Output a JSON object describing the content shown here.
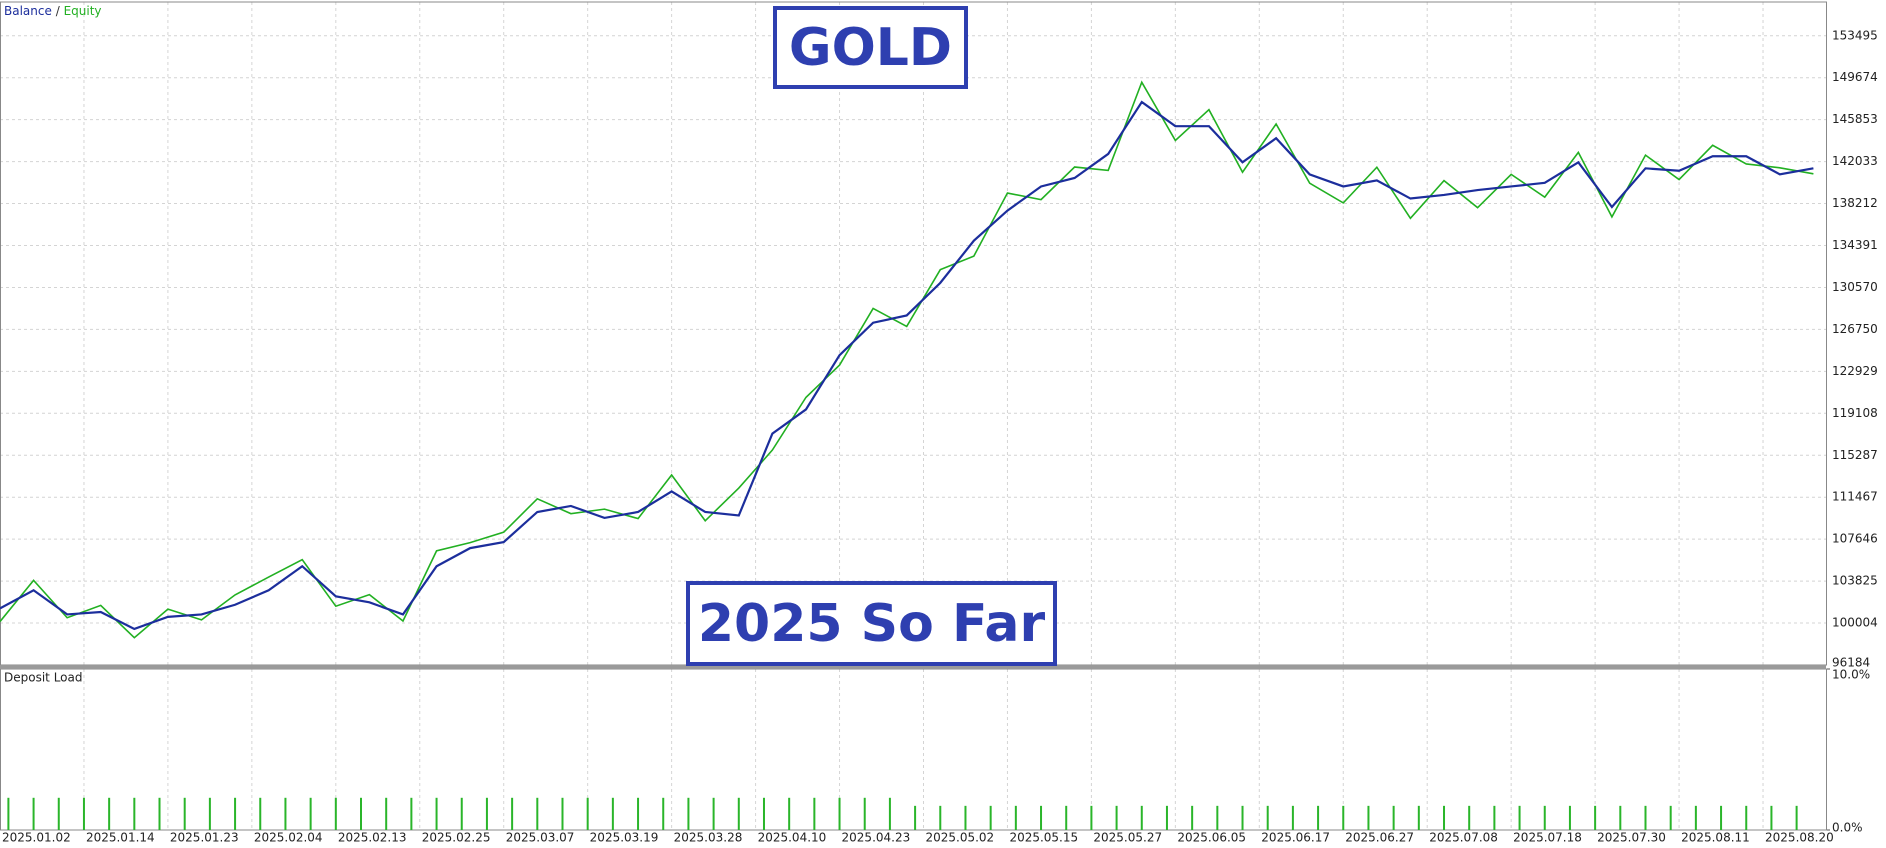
{
  "chart_data": [
    {
      "type": "line",
      "legend_separator": "/",
      "annotations": [
        "GOLD",
        "2025 So Far"
      ],
      "x": [
        0,
        4,
        8,
        12,
        16,
        20,
        24,
        28,
        32,
        36,
        40,
        44,
        48,
        52,
        56,
        60,
        64,
        68,
        72,
        76,
        80,
        84,
        88,
        92,
        96,
        100,
        104,
        108,
        112,
        116,
        120,
        124,
        128,
        132,
        136,
        140,
        144,
        148,
        152,
        156,
        160,
        164,
        168,
        172,
        176,
        180,
        184,
        188,
        192,
        196,
        200,
        204,
        208,
        212,
        216
      ],
      "series": [
        {
          "name": "Equity",
          "color": "#22b022",
          "values": [
            100140,
            103890,
            100490,
            101610,
            98670,
            101270,
            100290,
            102570,
            104190,
            105780,
            101540,
            102590,
            100190,
            106580,
            107330,
            108280,
            111320,
            109970,
            110380,
            109520,
            113490,
            109320,
            112300,
            115760,
            120560,
            123500,
            128660,
            127020,
            132190,
            133430,
            139170,
            138570,
            141540,
            141230,
            149260,
            143960,
            146760,
            141070,
            145460,
            140070,
            138270,
            141520,
            136870,
            140300,
            137840,
            140870,
            138800,
            142870,
            137000,
            142620,
            140400,
            143520,
            141820,
            141470,
            140920
          ]
        },
        {
          "name": "Balance",
          "color": "#1c2e9c",
          "values": [
            101340,
            102990,
            100790,
            101010,
            99470,
            100570,
            100790,
            101670,
            102990,
            105180,
            102440,
            101890,
            100790,
            105180,
            106830,
            107380,
            110120,
            110670,
            109580,
            110120,
            111990,
            110120,
            109800,
            117260,
            119460,
            124400,
            127360,
            128020,
            130990,
            134830,
            137570,
            139770,
            140540,
            142730,
            147460,
            145260,
            145260,
            141970,
            144160,
            140870,
            139770,
            140320,
            138670,
            139000,
            139440,
            139770,
            140100,
            141970,
            137900,
            141420,
            141200,
            142520,
            142520,
            140870,
            141420
          ]
        }
      ],
      "xlim": [
        0,
        217.5
      ],
      "xticks": [
        {
          "value": 0,
          "label": "2025.01.02"
        },
        {
          "value": 10,
          "label": "2025.01.14"
        },
        {
          "value": 20,
          "label": "2025.01.23"
        },
        {
          "value": 30,
          "label": "2025.02.04"
        },
        {
          "value": 40,
          "label": "2025.02.13"
        },
        {
          "value": 50,
          "label": "2025.02.25"
        },
        {
          "value": 60,
          "label": "2025.03.07"
        },
        {
          "value": 70,
          "label": "2025.03.19"
        },
        {
          "value": 80,
          "label": "2025.03.28"
        },
        {
          "value": 90,
          "label": "2025.04.10"
        },
        {
          "value": 100,
          "label": "2025.04.23"
        },
        {
          "value": 110,
          "label": "2025.05.02"
        },
        {
          "value": 120,
          "label": "2025.05.15"
        },
        {
          "value": 130,
          "label": "2025.05.27"
        },
        {
          "value": 140,
          "label": "2025.06.05"
        },
        {
          "value": 150,
          "label": "2025.06.17"
        },
        {
          "value": 160,
          "label": "2025.06.27"
        },
        {
          "value": 170,
          "label": "2025.07.08"
        },
        {
          "value": 180,
          "label": "2025.07.18"
        },
        {
          "value": 190,
          "label": "2025.07.30"
        },
        {
          "value": 200,
          "label": "2025.08.11"
        },
        {
          "value": 210,
          "label": "2025.08.20"
        }
      ],
      "ylim": [
        96184,
        156570
      ],
      "yticks": [
        96184,
        100004,
        103825,
        107646,
        111467,
        115287,
        119108,
        122929,
        126750,
        130570,
        134391,
        138212,
        142033,
        145853,
        149674,
        153495
      ],
      "grid": true
    },
    {
      "type": "bar",
      "title": "Deposit Load",
      "color": "#2ab52a",
      "x": [
        1,
        4,
        7,
        10,
        13,
        16,
        19,
        22,
        25,
        28,
        31,
        34,
        37,
        40,
        43,
        46,
        49,
        52,
        55,
        58,
        61,
        64,
        67,
        70,
        73,
        76,
        79,
        82,
        85,
        88,
        91,
        94,
        97,
        100,
        103,
        106,
        109,
        112,
        115,
        118,
        121,
        124,
        127,
        130,
        133,
        136,
        139,
        142,
        145,
        148,
        151,
        154,
        157,
        160,
        163,
        166,
        169,
        172,
        175,
        178,
        181,
        184,
        187,
        190,
        193,
        196,
        199,
        202,
        205,
        208,
        211,
        214
      ],
      "values": [
        2.0,
        2.0,
        2.0,
        2.0,
        2.0,
        2.0,
        2.0,
        2.0,
        2.0,
        2.0,
        2.0,
        2.0,
        2.0,
        2.0,
        2.0,
        2.0,
        2.0,
        2.0,
        2.0,
        2.0,
        2.0,
        2.0,
        2.0,
        2.0,
        2.0,
        2.0,
        2.0,
        2.0,
        2.0,
        2.0,
        2.0,
        2.0,
        2.0,
        2.0,
        2.0,
        2.0,
        1.5,
        1.5,
        1.5,
        1.5,
        1.5,
        1.5,
        1.5,
        1.5,
        1.5,
        1.5,
        1.5,
        1.5,
        1.5,
        1.5,
        1.5,
        1.5,
        1.5,
        1.5,
        1.5,
        1.5,
        1.5,
        1.5,
        1.5,
        1.5,
        1.5,
        1.5,
        1.5,
        1.5,
        1.5,
        1.5,
        1.5,
        1.5,
        1.5,
        1.5,
        1.5,
        1.5
      ],
      "xlim": [
        0,
        217.5
      ],
      "ylim": [
        0,
        10
      ],
      "yticks": [
        {
          "value": 0,
          "label": "0.0%"
        },
        {
          "value": 10,
          "label": "10.0%"
        }
      ]
    }
  ]
}
